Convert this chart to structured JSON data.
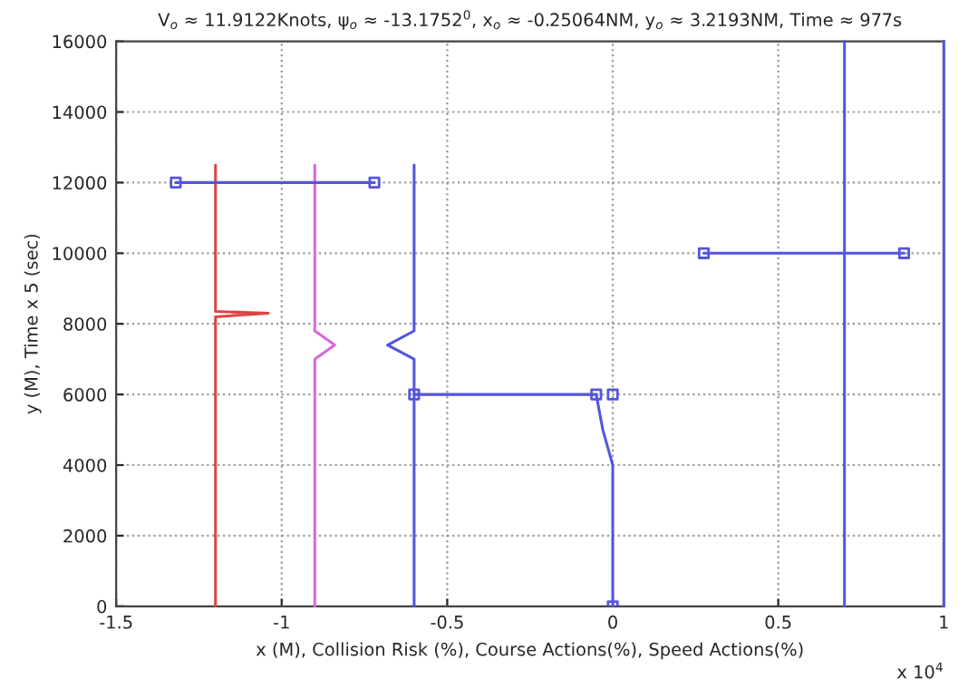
{
  "chart_data": {
    "type": "line",
    "title": "V$_{o}$ ≈ 11.9122Knots, ψ$_{o}$ ≈ -13.1752$^{0}$, x$_{o}$ ≈ -0.25064NM, y$_{o}$ ≈ 3.2193NM, Time ≈ 977s",
    "xlabel": "x (M), Collision Risk (%), Course Actions(%), Speed Actions(%)",
    "ylabel": "y (M), Time x 5 (sec)",
    "annotations": [
      "x 10$^{4}$"
    ],
    "xlim": [
      -1.5,
      1
    ],
    "xticks": [
      -1.5,
      -1,
      -0.5,
      0,
      0.5,
      1
    ],
    "ylim": [
      0,
      16000
    ],
    "yticks": [
      0,
      2000,
      4000,
      6000,
      8000,
      10000,
      12000,
      14000,
      16000
    ],
    "grid": true,
    "line_style": "solid",
    "series": [
      {
        "color": "#dd4444",
        "x": [
          -1.2,
          -1.2,
          -1.04,
          -1.2,
          -1.2
        ],
        "values": [
          0,
          8200,
          8300,
          8350,
          12500
        ]
      },
      {
        "color": "#dd66dd",
        "x": [
          -0.9,
          -0.9,
          -0.84,
          -0.9,
          -0.9
        ],
        "values": [
          0,
          7000,
          7400,
          7800,
          12500
        ]
      },
      {
        "color": "#5555dd",
        "x": [
          -0.6,
          -0.6,
          -0.68,
          -0.6,
          -0.6
        ],
        "values": [
          0,
          7000,
          7400,
          7800,
          12500
        ]
      },
      {
        "color": "#5555dd",
        "x": [
          -1.32,
          -0.72
        ],
        "values": [
          12000,
          12000
        ]
      },
      {
        "color": "#5555dd",
        "x": [
          -0.6,
          -0.05
        ],
        "values": [
          6000,
          6000
        ]
      },
      {
        "color": "#5555dd",
        "x": [
          -0.05,
          -0.03,
          0,
          0
        ],
        "values": [
          6000,
          5000,
          4000,
          0
        ]
      },
      {
        "color": "#5555dd",
        "x": [
          0.275,
          0.88
        ],
        "values": [
          10000,
          10000
        ]
      },
      {
        "color": "#5555dd",
        "x": [
          0.7,
          0.7
        ],
        "values": [
          0,
          16000
        ]
      },
      {
        "color": "#5555dd",
        "x": [
          1,
          1
        ],
        "values": [
          0,
          16000
        ]
      },
      {
        "type": "scatter",
        "marker": "square",
        "color": "#5555dd",
        "x": [
          -1.32,
          -0.72,
          -0.6,
          -0.05,
          0,
          0,
          0.275,
          0.88
        ],
        "values": [
          12000,
          12000,
          6000,
          6000,
          6000,
          0,
          10000,
          10000
        ]
      }
    ]
  }
}
